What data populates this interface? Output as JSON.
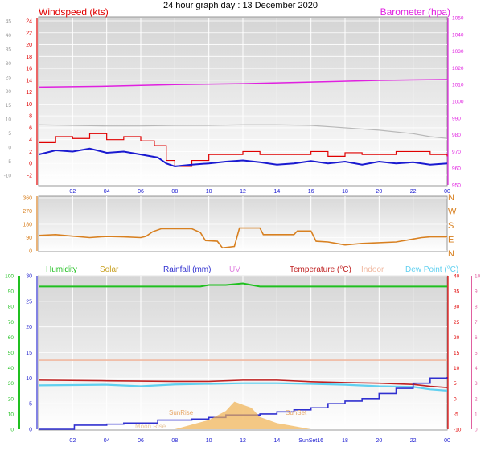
{
  "title": "24 hour graph day : 13 December 2020",
  "colors": {
    "wind": "#e00000",
    "gust_avg": "#1a1ad0",
    "wind_grey": "#b8b8b8",
    "baro": "#e020e0",
    "dir": "#d88020",
    "humidity": "#20c020",
    "solar": "#c8a020",
    "rain": "#3030d0",
    "uv": "#e080e0",
    "temp": "#c02020",
    "indoor": "#f0b8a0",
    "dew": "#60d0f0",
    "axis_green": "#20c020",
    "axis_red": "#e00000",
    "axis_pink": "#e060a0"
  },
  "time_axis": {
    "labels": [
      "02",
      "04",
      "06",
      "08",
      "10",
      "12",
      "14",
      "16",
      "18",
      "20",
      "22",
      "00"
    ],
    "bottom_labels": [
      "02",
      "04",
      "06",
      "08",
      "10",
      "12",
      "14",
      "SunSet16",
      "18",
      "20",
      "22",
      "00"
    ]
  },
  "chart_data": [
    {
      "type": "line",
      "name": "wind-barometer",
      "left_title": "Windspeed (kts)",
      "right_title": "Barometer (hpa)",
      "x_unit": "hour",
      "y_left_ticks": [
        24,
        22,
        20,
        18,
        16,
        14,
        12,
        10,
        8,
        6,
        4,
        2,
        0,
        -2
      ],
      "y_outer_ticks": [
        45,
        40,
        35,
        30,
        25,
        20,
        15,
        10,
        5,
        0,
        -5,
        -10
      ],
      "y_right_ticks": [
        1050,
        1040,
        1030,
        1020,
        1010,
        1000,
        990,
        980,
        970,
        960,
        950
      ],
      "series": [
        {
          "key": "baro",
          "unit": "hpa",
          "x": [
            0,
            4,
            8,
            12,
            16,
            20,
            24
          ],
          "y": [
            1008.5,
            1009,
            1010,
            1010.5,
            1011.5,
            1012.5,
            1013
          ]
        },
        {
          "key": "wind_grey",
          "unit": "kts",
          "x": [
            0,
            2,
            4,
            6,
            8,
            10,
            12,
            14,
            16,
            18,
            20,
            22,
            23,
            24
          ],
          "y": [
            6.5,
            6.4,
            6.3,
            6.3,
            6.4,
            6.4,
            6.5,
            6.5,
            6.4,
            6.0,
            5.6,
            5.0,
            4.5,
            4.2
          ]
        },
        {
          "key": "wind",
          "unit": "kts",
          "x": [
            0,
            1,
            2,
            3,
            4,
            5,
            6,
            6.8,
            7.5,
            8,
            9,
            10,
            11,
            12,
            13,
            14,
            15,
            16,
            17,
            18,
            19,
            20,
            21,
            22,
            23,
            24
          ],
          "y": [
            3.5,
            4.5,
            4.2,
            5.0,
            4.0,
            4.5,
            3.8,
            3.0,
            0.5,
            -0.5,
            0.5,
            1.5,
            1.5,
            2.0,
            1.5,
            1.5,
            1.5,
            2.0,
            1.2,
            1.8,
            1.5,
            1.5,
            2.0,
            2.0,
            1.5,
            1.2
          ]
        },
        {
          "key": "gust_avg",
          "unit": "kts",
          "x": [
            0,
            1,
            2,
            3,
            4,
            5,
            6,
            7,
            7.5,
            8,
            9,
            10,
            11,
            12,
            13,
            14,
            15,
            16,
            17,
            18,
            19,
            20,
            21,
            22,
            23,
            24
          ],
          "y": [
            1.5,
            2.2,
            2.0,
            2.5,
            1.8,
            2.0,
            1.5,
            1.0,
            0.0,
            -0.5,
            -0.2,
            0.0,
            0.3,
            0.5,
            0.2,
            -0.2,
            0.0,
            0.4,
            0.0,
            0.3,
            -0.2,
            0.3,
            0.0,
            0.2,
            -0.2,
            0.0
          ]
        }
      ]
    },
    {
      "type": "line",
      "name": "wind-direction",
      "y_ticks": [
        360,
        270,
        180,
        90,
        0
      ],
      "compass": [
        "N",
        "W",
        "S",
        "E",
        "N"
      ],
      "series": [
        {
          "key": "dir",
          "unit": "deg",
          "x": [
            0,
            1,
            2,
            3,
            4,
            5,
            6,
            6.3,
            6.7,
            7.2,
            8,
            9,
            9.5,
            9.8,
            10.5,
            10.8,
            11.5,
            11.8,
            13,
            13.2,
            15,
            15.2,
            16,
            16.3,
            17,
            17.5,
            18,
            19,
            21,
            22,
            22.5,
            23,
            24
          ],
          "y": [
            105,
            110,
            100,
            90,
            98,
            95,
            90,
            98,
            130,
            150,
            150,
            150,
            125,
            70,
            65,
            20,
            30,
            155,
            155,
            110,
            110,
            135,
            135,
            65,
            60,
            50,
            40,
            50,
            60,
            80,
            90,
            95,
            95
          ]
        }
      ]
    },
    {
      "type": "line",
      "name": "temperature-humidity",
      "legend": [
        "Humidity",
        "Solar",
        "Rainfall (mm)",
        "UV",
        "Temperature (°C)",
        "Indoor",
        "Dew Point (°C)"
      ],
      "y_humidity_ticks": [
        100,
        90,
        80,
        70,
        60,
        50,
        40,
        30,
        20,
        10,
        0
      ],
      "y_rain_ticks": [
        30,
        25,
        20,
        15,
        10,
        5,
        0
      ],
      "y_temp_ticks": [
        40,
        35,
        30,
        25,
        20,
        15,
        10,
        5,
        0,
        -5,
        -10
      ],
      "y_uv_ticks": [
        10,
        9,
        8,
        7,
        6,
        5,
        4,
        3,
        2,
        1,
        0
      ],
      "annotations": [
        "SunRise",
        "SunSet",
        "Moon Rise"
      ],
      "series": [
        {
          "key": "humidity",
          "unit": "%",
          "x": [
            0,
            8,
            9.5,
            10,
            11,
            12,
            12.5,
            13,
            16,
            20,
            24
          ],
          "y": [
            93,
            93,
            93,
            94,
            94,
            95,
            94,
            93,
            93,
            93,
            93
          ]
        },
        {
          "key": "indoor",
          "unit": "°C",
          "x": [
            0,
            24
          ],
          "y": [
            12.5,
            12.5
          ]
        },
        {
          "key": "temp",
          "unit": "°C",
          "x": [
            0,
            4,
            8,
            10,
            12,
            14,
            16,
            18,
            20,
            22,
            23,
            24
          ],
          "y": [
            6.0,
            5.8,
            5.6,
            5.6,
            6.0,
            6.0,
            5.5,
            5.2,
            5.0,
            4.6,
            4.0,
            3.6
          ]
        },
        {
          "key": "dew",
          "unit": "°C",
          "x": [
            0,
            2,
            4,
            6,
            8,
            10,
            12,
            14,
            16,
            18,
            20,
            22,
            23,
            24
          ],
          "y": [
            4.3,
            4.4,
            4.5,
            4.0,
            4.6,
            4.8,
            5.0,
            5.0,
            4.8,
            4.5,
            4.0,
            3.8,
            3.0,
            2.6
          ]
        },
        {
          "key": "rain",
          "unit": "mm",
          "x": [
            0,
            2,
            2.1,
            4,
            5,
            7,
            9,
            10,
            11,
            13,
            14,
            15,
            16,
            17,
            18,
            19,
            20,
            21,
            22,
            23,
            24
          ],
          "y": [
            0,
            0,
            0.8,
            1.0,
            1.2,
            1.8,
            2.0,
            2.3,
            2.8,
            3.0,
            3.4,
            3.8,
            4.2,
            5.0,
            5.5,
            6.0,
            7.0,
            8.0,
            9.0,
            10.0,
            10.2
          ]
        },
        {
          "key": "solar",
          "unit": "W/m²",
          "x": [
            0,
            8,
            9,
            10,
            11,
            11.5,
            12,
            12.5,
            13,
            14,
            15,
            16,
            24
          ],
          "y": [
            0,
            0,
            3,
            6,
            12,
            18,
            16,
            14,
            8,
            4,
            2,
            0,
            0
          ]
        }
      ]
    }
  ]
}
